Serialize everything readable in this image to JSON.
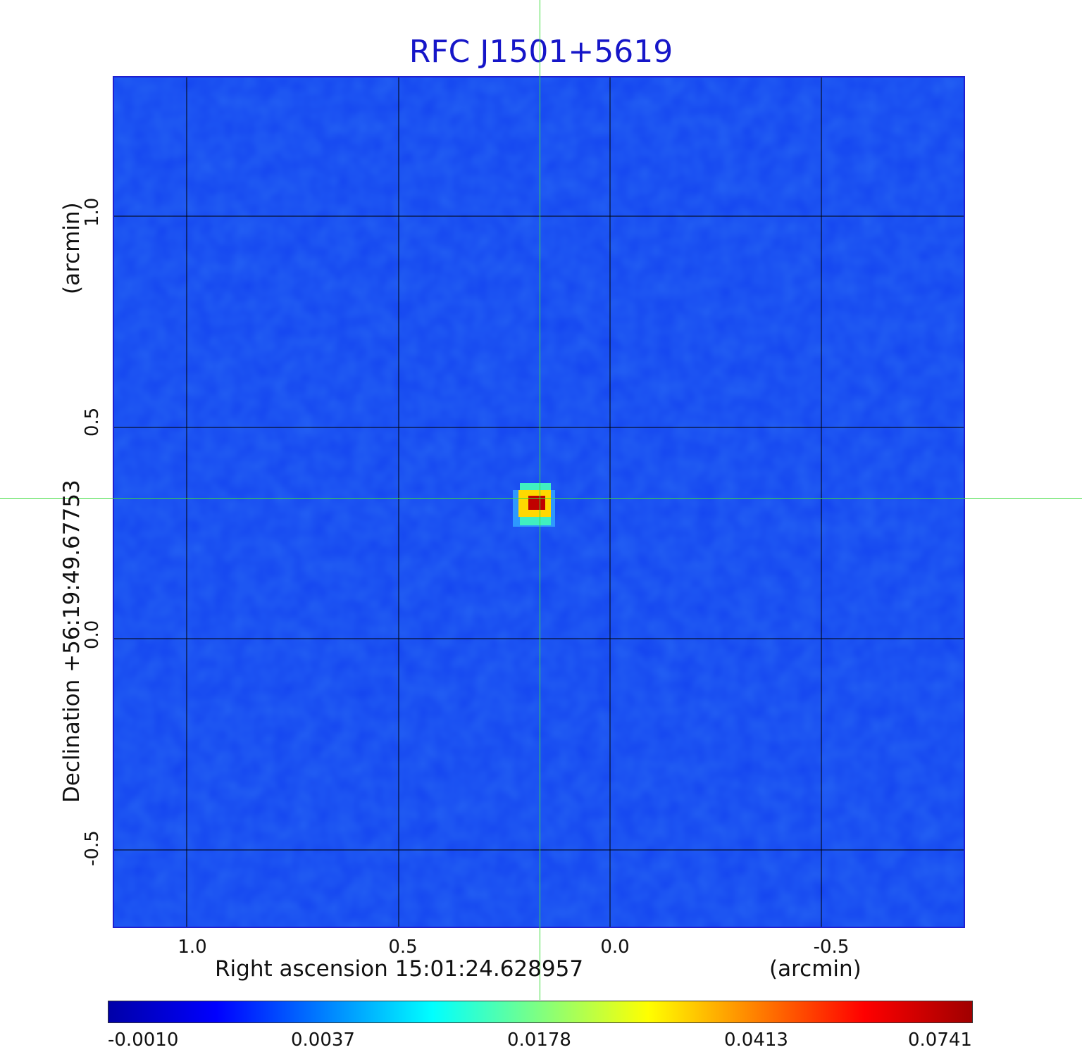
{
  "title": "RFC J1501+5619",
  "x_axis": {
    "label": "Right ascension  15:01:24.628957",
    "unit": "(arcmin)",
    "ticks": [
      "1.0",
      "0.5",
      "0.0",
      "-0.5"
    ]
  },
  "y_axis": {
    "label": "Declination  +56:19:49.67753",
    "unit": "(arcmin)",
    "ticks": [
      "1.0",
      "0.5",
      "0.0",
      "-0.5"
    ]
  },
  "colorbar": {
    "labels": [
      "-0.0010",
      "0.0037",
      "0.0178",
      "0.0413",
      "0.0741"
    ],
    "colors": [
      "#0000a8",
      "#0000ff",
      "#0080ff",
      "#00ffff",
      "#80ff80",
      "#ffff00",
      "#ff8000",
      "#ff0000",
      "#a00000"
    ]
  },
  "image": {
    "background_color": "#1444f0",
    "grid_color": "#000000",
    "crosshair_color": "#3ddc3d",
    "source": {
      "peak_color": "#c00000",
      "halo_colors": [
        "#ffd800",
        "#40f0c0",
        "#30a0ff"
      ]
    }
  }
}
